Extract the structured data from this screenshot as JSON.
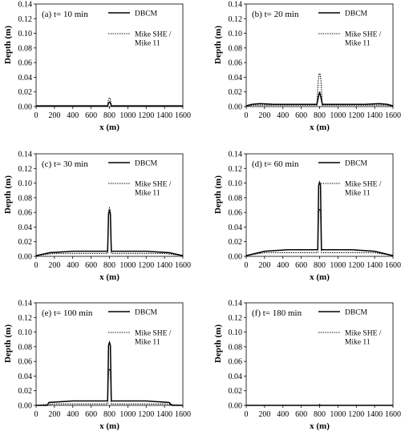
{
  "chart_data": [
    {
      "type": "line",
      "title": "(a) t= 10 min",
      "xlabel": "x (m)",
      "ylabel": "Depth (m)",
      "xlim": [
        0,
        1600
      ],
      "ylim": [
        0,
        0.14
      ],
      "xticks": [
        "0",
        "200",
        "400",
        "600",
        "800",
        "1000",
        "1200",
        "1400",
        "1600"
      ],
      "yticks": [
        "0.00",
        "0.02",
        "0.04",
        "0.06",
        "0.08",
        "0.10",
        "0.12",
        "0.14"
      ],
      "legend": [
        "DBCM",
        "Mike SHE /",
        "Mike 11"
      ],
      "series": [
        {
          "name": "DBCM",
          "style": "solid",
          "x": [
            0,
            780,
            790,
            800,
            810,
            820,
            1600
          ],
          "y": [
            0.001,
            0.001,
            0.005,
            0.006,
            0.005,
            0.001,
            0.001
          ]
        },
        {
          "name": "Mike SHE / Mike 11",
          "style": "dotted",
          "x": [
            0,
            780,
            790,
            800,
            810,
            820,
            1600
          ],
          "y": [
            0.001,
            0.001,
            0.01,
            0.012,
            0.01,
            0.001,
            0.001
          ]
        }
      ]
    },
    {
      "type": "line",
      "title": "(b) t= 20 min",
      "xlabel": "x (m)",
      "ylabel": "Depth (m)",
      "xlim": [
        0,
        1600
      ],
      "ylim": [
        0,
        0.14
      ],
      "xticks": [
        "0",
        "200",
        "400",
        "600",
        "800",
        "1000",
        "1200",
        "1400",
        "1600"
      ],
      "yticks": [
        "0.00",
        "0.02",
        "0.04",
        "0.06",
        "0.08",
        "0.10",
        "0.12",
        "0.14"
      ],
      "legend": [
        "DBCM",
        "Mike SHE /",
        "Mike 11"
      ],
      "series": [
        {
          "name": "DBCM",
          "style": "solid",
          "x": [
            0,
            60,
            150,
            300,
            500,
            770,
            790,
            800,
            810,
            830,
            1100,
            1300,
            1450,
            1540,
            1600
          ],
          "y": [
            0.001,
            0.003,
            0.004,
            0.003,
            0.003,
            0.003,
            0.015,
            0.02,
            0.015,
            0.003,
            0.003,
            0.003,
            0.004,
            0.003,
            0.001
          ]
        },
        {
          "name": "Mike SHE / Mike 11",
          "style": "dotted",
          "x": [
            0,
            100,
            400,
            770,
            785,
            795,
            805,
            815,
            830,
            1200,
            1500,
            1600
          ],
          "y": [
            0.001,
            0.002,
            0.002,
            0.002,
            0.035,
            0.045,
            0.045,
            0.035,
            0.002,
            0.002,
            0.002,
            0.001
          ]
        }
      ]
    },
    {
      "type": "line",
      "title": "(c) t= 30 min",
      "xlabel": "x (m)",
      "ylabel": "Depth (m)",
      "xlim": [
        0,
        1600
      ],
      "ylim": [
        0,
        0.14
      ],
      "xticks": [
        "0",
        "200",
        "400",
        "600",
        "800",
        "1000",
        "1200",
        "1400",
        "1600"
      ],
      "yticks": [
        "0.00",
        "0.02",
        "0.04",
        "0.06",
        "0.08",
        "0.10",
        "0.12",
        "0.14"
      ],
      "legend": [
        "DBCM",
        "Mike SHE /",
        "Mike 11"
      ],
      "series": [
        {
          "name": "DBCM",
          "style": "solid",
          "x": [
            0,
            150,
            400,
            780,
            790,
            800,
            810,
            820,
            1200,
            1450,
            1600
          ],
          "y": [
            0.001,
            0.005,
            0.007,
            0.007,
            0.058,
            0.062,
            0.058,
            0.007,
            0.007,
            0.005,
            0.001
          ]
        },
        {
          "name": "Mike SHE / Mike 11",
          "style": "dotted",
          "x": [
            0,
            200,
            780,
            790,
            800,
            810,
            820,
            1400,
            1600
          ],
          "y": [
            0.001,
            0.004,
            0.004,
            0.062,
            0.066,
            0.062,
            0.004,
            0.004,
            0.001
          ]
        }
      ]
    },
    {
      "type": "line",
      "title": "(d) t= 60 min",
      "xlabel": "x (m)",
      "ylabel": "Depth (m)",
      "xlim": [
        0,
        1600
      ],
      "ylim": [
        0,
        0.14
      ],
      "xticks": [
        "0",
        "200",
        "400",
        "600",
        "800",
        "1000",
        "1200",
        "1400",
        "1600"
      ],
      "yticks": [
        "0.00",
        "0.02",
        "0.04",
        "0.06",
        "0.08",
        "0.10",
        "0.12",
        "0.14"
      ],
      "legend": [
        "DBCM",
        "Mike SHE /",
        "Mike 11"
      ],
      "series": [
        {
          "name": "DBCM",
          "style": "solid",
          "x": [
            0,
            200,
            450,
            780,
            790,
            800,
            810,
            820,
            1150,
            1400,
            1600
          ],
          "y": [
            0.001,
            0.007,
            0.009,
            0.009,
            0.097,
            0.101,
            0.097,
            0.009,
            0.009,
            0.007,
            0.001
          ]
        },
        {
          "name": "Mike SHE / Mike 11",
          "style": "dotted",
          "x": [
            0,
            200,
            780,
            790,
            800,
            810,
            820,
            1400,
            1600
          ],
          "y": [
            0.001,
            0.005,
            0.005,
            0.06,
            0.065,
            0.06,
            0.005,
            0.005,
            0.001
          ]
        }
      ]
    },
    {
      "type": "line",
      "title": "(e) t= 100 min",
      "xlabel": "x (m)",
      "ylabel": "Depth (m)",
      "xlim": [
        0,
        1600
      ],
      "ylim": [
        0,
        0.14
      ],
      "xticks": [
        "0",
        "200",
        "400",
        "600",
        "800",
        "1000",
        "1200",
        "1400",
        "1600"
      ],
      "yticks": [
        "0.00",
        "0.02",
        "0.04",
        "0.06",
        "0.08",
        "0.10",
        "0.12",
        "0.14"
      ],
      "legend": [
        "DBCM",
        "Mike SHE /",
        "Mike 11"
      ],
      "series": [
        {
          "name": "DBCM",
          "style": "solid",
          "x": [
            0,
            120,
            140,
            400,
            780,
            790,
            800,
            810,
            820,
            1200,
            1450,
            1480,
            1600
          ],
          "y": [
            0.0,
            0.0,
            0.004,
            0.006,
            0.006,
            0.082,
            0.086,
            0.082,
            0.006,
            0.006,
            0.004,
            0.0,
            0.0
          ]
        },
        {
          "name": "Mike SHE / Mike 11",
          "style": "dotted",
          "x": [
            0,
            200,
            780,
            790,
            800,
            810,
            820,
            1400,
            1600
          ],
          "y": [
            0.0,
            0.002,
            0.002,
            0.045,
            0.05,
            0.045,
            0.002,
            0.002,
            0.0
          ]
        }
      ]
    },
    {
      "type": "line",
      "title": "(f) t= 180 min",
      "xlabel": "x (m)",
      "ylabel": "Depth (m)",
      "xlim": [
        0,
        1600
      ],
      "ylim": [
        0,
        0.14
      ],
      "xticks": [
        "0",
        "200",
        "400",
        "600",
        "800",
        "1000",
        "1200",
        "1400",
        "1600"
      ],
      "yticks": [
        "0.00",
        "0.02",
        "0.04",
        "0.06",
        "0.08",
        "0.10",
        "0.12",
        "0.14"
      ],
      "legend": [
        "DBCM",
        "Mike SHE /",
        "Mike 11"
      ],
      "series": [
        {
          "name": "DBCM",
          "style": "solid",
          "x": [
            0,
            790,
            800,
            810,
            1600
          ],
          "y": [
            0.0,
            0.0,
            0.001,
            0.0,
            0.0
          ]
        },
        {
          "name": "Mike SHE / Mike 11",
          "style": "dotted",
          "x": [
            0,
            1600
          ],
          "y": [
            0.0,
            0.0
          ]
        }
      ]
    }
  ]
}
